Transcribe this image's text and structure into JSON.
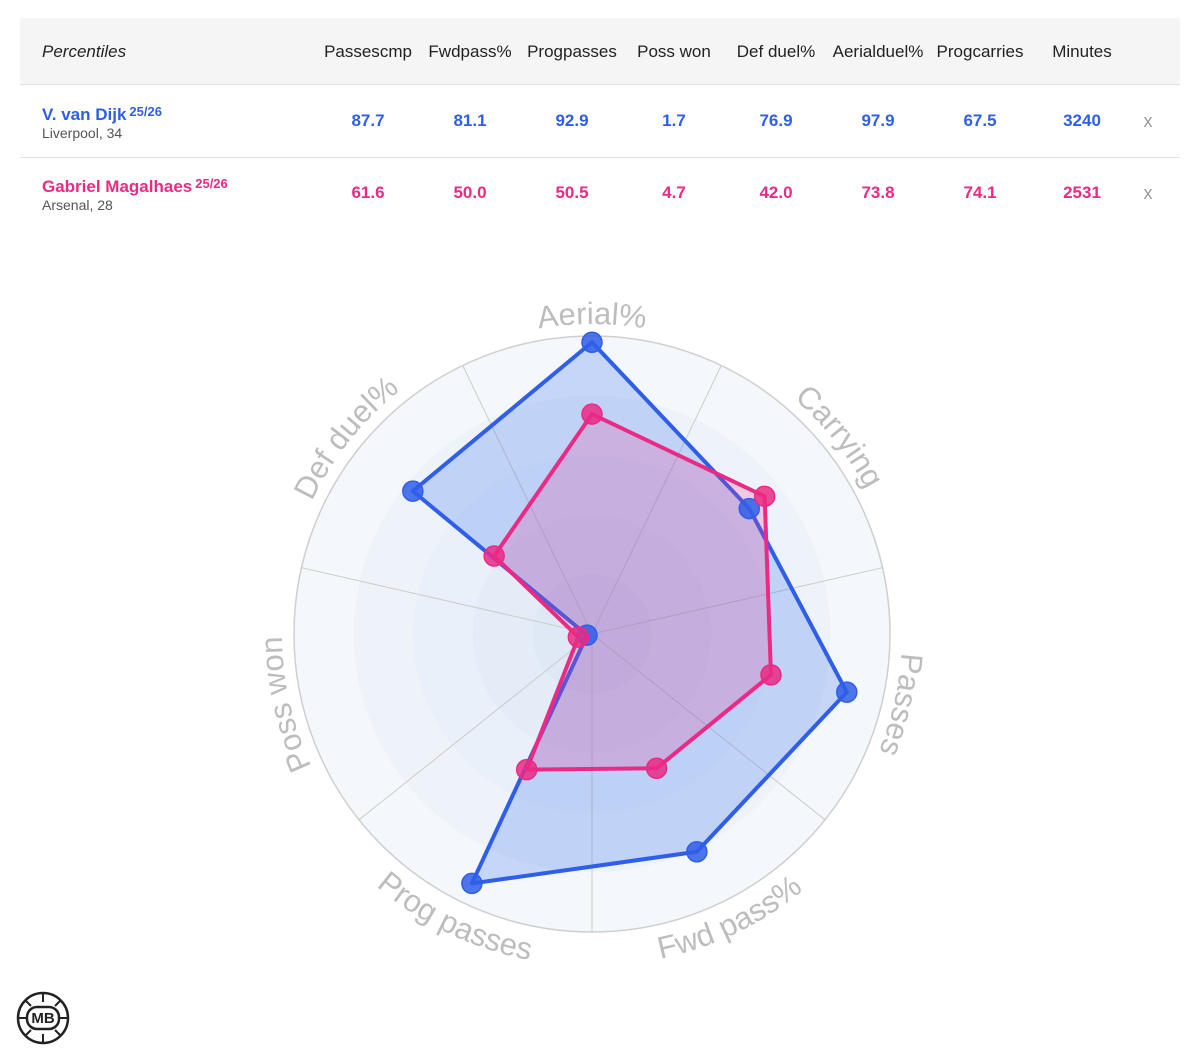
{
  "table": {
    "title": "Percentiles",
    "columns": [
      [
        "Passes",
        "cmp"
      ],
      [
        "Fwd",
        "pass%"
      ],
      [
        "Prog",
        "passes"
      ],
      [
        "Poss won"
      ],
      [
        "Def duel%"
      ],
      [
        "Aerial",
        "duel%"
      ],
      [
        "Prog",
        "carries"
      ],
      [
        "Minutes"
      ]
    ],
    "remove_label": "x",
    "players": [
      {
        "name": "V. van Dijk",
        "season": "25/26",
        "club": "Liverpool, 34",
        "color": "#2f5ee8",
        "values": [
          "87.7",
          "81.1",
          "92.9",
          "1.7",
          "76.9",
          "97.9",
          "67.5",
          "3240"
        ]
      },
      {
        "name": "Gabriel Magalhaes",
        "season": "25/26",
        "club": "Arsenal, 28",
        "color": "#ea2a84",
        "values": [
          "61.6",
          "50.0",
          "50.5",
          "4.7",
          "42.0",
          "73.8",
          "74.1",
          "2531"
        ]
      }
    ]
  },
  "chart_data": {
    "type": "radar",
    "axes": [
      "Aerial%",
      "Carrying",
      "Passes",
      "Fwd pass%",
      "Prog passes",
      "Poss won",
      "Def duel%"
    ],
    "range": [
      0,
      100
    ],
    "series": [
      {
        "name": "V. van Dijk",
        "color": "#2f5ee8",
        "fill": "rgba(60,110,240,0.25)",
        "values": [
          97.9,
          67.5,
          87.7,
          81.1,
          92.9,
          1.7,
          76.9
        ]
      },
      {
        "name": "Gabriel Magalhaes",
        "color": "#ea2a84",
        "fill": "rgba(235,60,140,0.22)",
        "values": [
          73.8,
          74.1,
          61.6,
          50.0,
          50.5,
          4.7,
          42.0
        ]
      }
    ],
    "background_color": "#edf3fb",
    "axis_label_color": "#bdbdbd"
  },
  "logo": {
    "text": "MB"
  }
}
